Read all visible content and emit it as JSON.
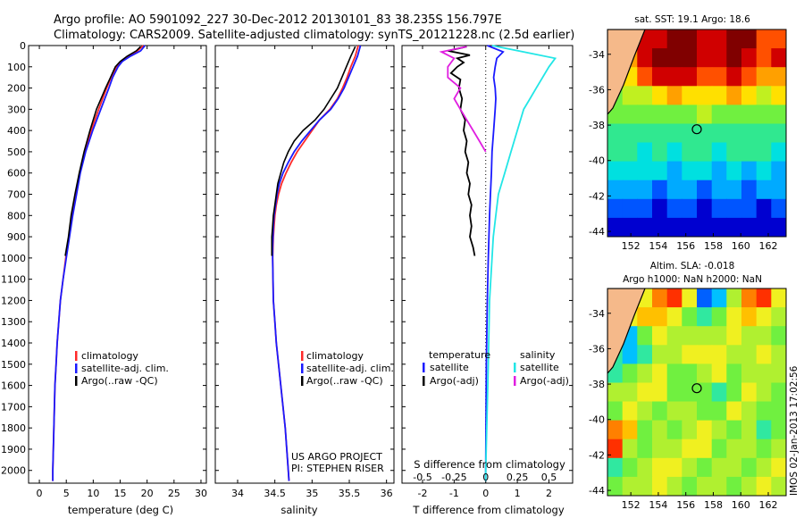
{
  "header": {
    "line1": "Argo profile: AO 5901092_227 30-Dec-2012 20130101_83 38.235S 156.797E",
    "line2": "Climatology: CARS2009. Satellite-adjusted climatology: synTS_20121228.nc (2.5d earlier)"
  },
  "colors": {
    "climatology": "#ff2a2a",
    "satellite": "#1a1aff",
    "argo": "#000000",
    "salinity_satellite": "#22e6e6",
    "salinity_argo": "#e01ee0"
  },
  "chart_data": [
    {
      "type": "line",
      "title": "",
      "xlabel": "temperature (deg C)",
      "ylabel": "",
      "xlim": [
        -2,
        31
      ],
      "ylim": [
        2060,
        0
      ],
      "xticks": [
        0,
        5,
        10,
        15,
        20,
        25,
        30
      ],
      "yticks": [
        0,
        100,
        200,
        300,
        400,
        500,
        600,
        700,
        800,
        900,
        1000,
        1100,
        1200,
        1300,
        1400,
        1500,
        1600,
        1700,
        1800,
        1900,
        2000
      ],
      "legend": [
        "climatology",
        "satellite-adj. clim.",
        "Argo(..raw -QC)"
      ],
      "legend_position": "lower-middle",
      "series": [
        {
          "name": "climatology",
          "color": "#ff2a2a",
          "depth": [
            0,
            25,
            50,
            75,
            100,
            150,
            200,
            300,
            400,
            500,
            600,
            700,
            800,
            900,
            1000,
            1100,
            1200,
            1300,
            1400,
            1500,
            1600,
            1700,
            1800,
            1900,
            2000,
            2050
          ],
          "values": [
            19.3,
            18.2,
            16.5,
            15.2,
            14.3,
            13.3,
            12.5,
            11.0,
            9.6,
            8.4,
            7.5,
            6.8,
            6.1,
            5.5,
            4.9,
            4.4,
            3.9,
            3.6,
            3.3,
            3.1,
            2.9,
            2.8,
            2.7,
            2.6,
            2.5,
            2.5
          ]
        },
        {
          "name": "satellite-adj. clim.",
          "color": "#1a1aff",
          "depth": [
            0,
            25,
            50,
            75,
            100,
            150,
            200,
            300,
            400,
            500,
            600,
            700,
            800,
            900,
            1000,
            1100,
            1200,
            1300,
            1400,
            1500,
            1600,
            1700,
            1800,
            1900,
            2000,
            2050
          ],
          "values": [
            19.6,
            18.8,
            16.9,
            15.4,
            14.6,
            13.6,
            12.9,
            11.4,
            9.9,
            8.6,
            7.6,
            6.9,
            6.2,
            5.6,
            5.0,
            4.4,
            3.9,
            3.6,
            3.3,
            3.1,
            2.9,
            2.8,
            2.7,
            2.6,
            2.5,
            2.5
          ]
        },
        {
          "name": "Argo(..raw -QC)",
          "color": "#000000",
          "depth": [
            5,
            25,
            50,
            75,
            100,
            150,
            200,
            300,
            400,
            500,
            600,
            700,
            800,
            900,
            990
          ],
          "values": [
            18.8,
            18.0,
            16.3,
            15.0,
            14.1,
            13.2,
            12.3,
            10.6,
            9.4,
            8.3,
            7.4,
            6.6,
            5.9,
            5.4,
            4.8
          ]
        }
      ]
    },
    {
      "type": "line",
      "title": "",
      "xlabel": "salinity",
      "ylabel": "",
      "xlim": [
        33.7,
        36.1
      ],
      "ylim": [
        2060,
        0
      ],
      "xticks": [
        34,
        34.5,
        35,
        35.5,
        36
      ],
      "legend": [
        "climatology",
        "satellite-adj. clim.",
        "Argo(..raw -QC)"
      ],
      "legend_position": "lower-middle",
      "annotation": [
        "US ARGO PROJECT",
        "PI: STEPHEN RISER"
      ],
      "series": [
        {
          "name": "climatology",
          "color": "#ff2a2a",
          "depth": [
            0,
            50,
            100,
            150,
            200,
            250,
            300,
            350,
            400,
            450,
            500,
            550,
            600,
            650,
            700,
            750,
            800,
            850,
            900,
            950,
            1000,
            1100,
            1200,
            1300,
            1400,
            1500,
            1600,
            1700,
            1800,
            1900,
            2000,
            2050
          ],
          "values": [
            35.62,
            35.58,
            35.52,
            35.47,
            35.41,
            35.34,
            35.24,
            35.1,
            35.0,
            34.9,
            34.8,
            34.72,
            34.65,
            34.59,
            34.55,
            34.52,
            34.5,
            34.49,
            34.48,
            34.475,
            34.47,
            34.475,
            34.48,
            34.5,
            34.52,
            34.55,
            34.58,
            34.61,
            34.64,
            34.66,
            34.68,
            34.69
          ]
        },
        {
          "name": "satellite-adj. clim.",
          "color": "#1a1aff",
          "depth": [
            0,
            50,
            100,
            150,
            200,
            250,
            300,
            350,
            400,
            450,
            500,
            550,
            600,
            650,
            700,
            750,
            800,
            850,
            900,
            950,
            1000,
            1100,
            1200,
            1300,
            1400,
            1500,
            1600,
            1700,
            1800,
            1900,
            2000,
            2050
          ],
          "values": [
            35.65,
            35.61,
            35.55,
            35.49,
            35.43,
            35.35,
            35.25,
            35.1,
            34.98,
            34.86,
            34.76,
            34.68,
            34.61,
            34.56,
            34.53,
            34.51,
            34.49,
            34.48,
            34.475,
            34.47,
            34.47,
            34.475,
            34.48,
            34.5,
            34.52,
            34.55,
            34.58,
            34.61,
            34.64,
            34.66,
            34.68,
            34.69
          ]
        },
        {
          "name": "Argo(..raw -QC)",
          "color": "#000000",
          "depth": [
            5,
            50,
            100,
            150,
            200,
            250,
            300,
            350,
            400,
            450,
            500,
            550,
            600,
            650,
            700,
            750,
            800,
            850,
            900,
            950,
            990
          ],
          "values": [
            35.58,
            35.52,
            35.46,
            35.4,
            35.34,
            35.25,
            35.16,
            35.04,
            34.88,
            34.76,
            34.68,
            34.62,
            34.58,
            34.54,
            34.52,
            34.5,
            34.48,
            34.47,
            34.46,
            34.46,
            34.46
          ]
        }
      ]
    },
    {
      "type": "line",
      "title": "",
      "xlabel": "T difference from climatology",
      "xlabel_top": "S difference from climatology",
      "ylabel": "",
      "xlim": [
        -2.65,
        2.75
      ],
      "ylim": [
        2060,
        0
      ],
      "xticks": [
        -2,
        -1,
        0,
        1,
        2
      ],
      "xticks_salinity": [
        -0.5,
        -0.25,
        0,
        0.25,
        0.5
      ],
      "legend_temperature": [
        "temperature",
        "satellite",
        "Argo(-adj)"
      ],
      "legend_salinity": [
        "salinity",
        "satellite",
        "Argo(-adj)"
      ],
      "series": [
        {
          "name": "temperature satellite",
          "color": "#1a1aff",
          "depth": [
            0,
            30,
            60,
            100,
            150,
            200,
            250,
            300,
            400,
            500,
            600,
            700,
            800,
            900,
            1000,
            1200,
            1500,
            2000,
            2050
          ],
          "values": [
            0.05,
            0.55,
            0.35,
            0.3,
            0.25,
            0.3,
            0.32,
            0.3,
            0.25,
            0.2,
            0.18,
            0.15,
            0.12,
            0.1,
            0.08,
            0.05,
            0.02,
            0.0,
            0.0
          ]
        },
        {
          "name": "temperature Argo(-adj)",
          "color": "#000000",
          "depth": [
            5,
            25,
            45,
            60,
            80,
            100,
            130,
            160,
            200,
            250,
            300,
            350,
            400,
            450,
            500,
            550,
            600,
            650,
            700,
            750,
            800,
            850,
            900,
            950,
            990
          ],
          "values": [
            -0.6,
            -1.2,
            -0.5,
            -0.9,
            -0.7,
            -0.9,
            -1.1,
            -0.8,
            -0.85,
            -0.75,
            -0.8,
            -0.65,
            -0.7,
            -0.6,
            -0.65,
            -0.55,
            -0.6,
            -0.5,
            -0.55,
            -0.45,
            -0.5,
            -0.45,
            -0.5,
            -0.4,
            -0.35
          ]
        },
        {
          "name": "salinity satellite",
          "color": "#22e6e6",
          "depth": [
            0,
            30,
            60,
            100,
            150,
            200,
            250,
            300,
            400,
            500,
            600,
            700,
            800,
            900,
            1000,
            1200,
            1500,
            2000,
            2050
          ],
          "values": [
            0.05,
            0.3,
            0.55,
            0.5,
            0.45,
            0.4,
            0.35,
            0.3,
            0.25,
            0.2,
            0.15,
            0.1,
            0.08,
            0.06,
            0.05,
            0.03,
            0.02,
            0.0,
            0.0
          ]
        },
        {
          "name": "salinity Argo(-adj)",
          "color": "#e01ee0",
          "depth": [
            5,
            30,
            60,
            100,
            150,
            200,
            250,
            300,
            350,
            400,
            450,
            500
          ],
          "values": [
            -0.15,
            -0.35,
            -0.25,
            -0.3,
            -0.3,
            -0.2,
            -0.25,
            -0.2,
            -0.15,
            -0.1,
            -0.05,
            0.0
          ]
        }
      ]
    },
    {
      "type": "heatmap",
      "title": "sat. SST: 19.1  Argo: 18.6",
      "xticks": [
        152,
        154,
        156,
        158,
        160,
        162
      ],
      "yticks": [
        -34,
        -36,
        -38,
        -40,
        -42,
        -44
      ],
      "xlim": [
        150.3,
        163.3
      ],
      "ylim": [
        -44.3,
        -32.6
      ],
      "marker": {
        "lon": 156.797,
        "lat": -38.235
      },
      "palette": [
        "#000080",
        "#0000d0",
        "#0055ff",
        "#00aaff",
        "#00e0e0",
        "#30e890",
        "#70f040",
        "#c0f020",
        "#ffe000",
        "#ffa000",
        "#ff5000",
        "#d00000",
        "#800000"
      ],
      "field": [
        [
          7,
          9,
          11,
          11,
          12,
          12,
          11,
          11,
          12,
          12,
          10,
          10
        ],
        [
          6,
          9,
          11,
          12,
          12,
          12,
          11,
          11,
          12,
          11,
          10,
          11
        ],
        [
          6,
          8,
          10,
          11,
          11,
          11,
          10,
          10,
          11,
          10,
          9,
          9
        ],
        [
          6,
          7,
          7,
          8,
          9,
          8,
          8,
          8,
          9,
          8,
          7,
          8
        ],
        [
          6,
          6,
          6,
          6,
          6,
          6,
          7,
          6,
          6,
          6,
          6,
          6
        ],
        [
          5,
          5,
          5,
          5,
          5,
          5,
          5,
          5,
          5,
          5,
          5,
          5
        ],
        [
          5,
          5,
          4,
          5,
          4,
          5,
          5,
          4,
          5,
          5,
          5,
          4
        ],
        [
          4,
          4,
          4,
          4,
          3,
          4,
          4,
          3,
          4,
          3,
          4,
          3
        ],
        [
          3,
          3,
          3,
          2,
          3,
          3,
          2,
          3,
          3,
          2,
          3,
          3
        ],
        [
          2,
          2,
          2,
          1,
          2,
          2,
          1,
          2,
          2,
          2,
          1,
          2
        ],
        [
          1,
          1,
          1,
          1,
          1,
          1,
          1,
          1,
          1,
          1,
          1,
          1
        ]
      ]
    },
    {
      "type": "heatmap",
      "title": "Altim. SLA: -0.018",
      "subtitle": "Argo h1000: NaN h2000: NaN",
      "xticks": [
        152,
        154,
        156,
        158,
        160,
        162
      ],
      "yticks": [
        -34,
        -36,
        -38,
        -40,
        -42,
        -44
      ],
      "xlim": [
        150.3,
        163.3
      ],
      "ylim": [
        -44.3,
        -32.6
      ],
      "marker": {
        "lon": 156.797,
        "lat": -38.235
      },
      "palette": [
        "#0000c0",
        "#0060ff",
        "#00c0ff",
        "#30e8a0",
        "#70f040",
        "#b0f030",
        "#f0f020",
        "#ffc000",
        "#ff8000",
        "#ff3000",
        "#c00000"
      ],
      "field": [
        [
          5,
          5,
          6,
          8,
          9,
          6,
          1,
          2,
          5,
          8,
          9,
          6
        ],
        [
          5,
          6,
          7,
          7,
          6,
          4,
          3,
          4,
          6,
          7,
          6,
          5
        ],
        [
          4,
          2,
          4,
          6,
          5,
          5,
          5,
          5,
          6,
          5,
          5,
          4
        ],
        [
          3,
          2,
          3,
          5,
          5,
          6,
          6,
          6,
          5,
          5,
          6,
          5
        ],
        [
          3,
          4,
          5,
          6,
          4,
          4,
          5,
          6,
          4,
          5,
          5,
          5
        ],
        [
          5,
          5,
          6,
          6,
          4,
          4,
          4,
          3,
          4,
          6,
          5,
          4
        ],
        [
          4,
          6,
          5,
          4,
          5,
          5,
          4,
          4,
          6,
          5,
          4,
          4
        ],
        [
          8,
          7,
          4,
          5,
          4,
          5,
          6,
          5,
          4,
          5,
          3,
          4
        ],
        [
          9,
          5,
          4,
          5,
          5,
          6,
          6,
          4,
          5,
          5,
          4,
          5
        ],
        [
          3,
          4,
          5,
          6,
          6,
          5,
          4,
          5,
          5,
          4,
          5,
          6
        ],
        [
          4,
          5,
          5,
          6,
          5,
          4,
          5,
          5,
          4,
          5,
          6,
          5
        ]
      ]
    }
  ],
  "legends": {
    "left": [
      "climatology",
      "satellite-adj. clim.",
      "Argo(..raw -QC)"
    ],
    "middle": [
      "climatology",
      "satellite-adj. clim.",
      "Argo(..raw -QC)"
    ],
    "diff_temperature": [
      "temperature",
      "satellite",
      "Argo(-adj)"
    ],
    "diff_salinity": [
      "salinity",
      "satellite",
      "Argo(-adj)"
    ]
  },
  "annotation": {
    "project": "US ARGO PROJECT",
    "pi": "PI: STEPHEN RISER"
  },
  "maps": {
    "sst_title": "sat. SST: 19.1  Argo: 18.6",
    "sla_title1": "Altim. SLA: -0.018",
    "sla_title2": "Argo h1000: NaN h2000: NaN"
  },
  "side_text": "IMOS 02-Jan-2013 17:02:56"
}
